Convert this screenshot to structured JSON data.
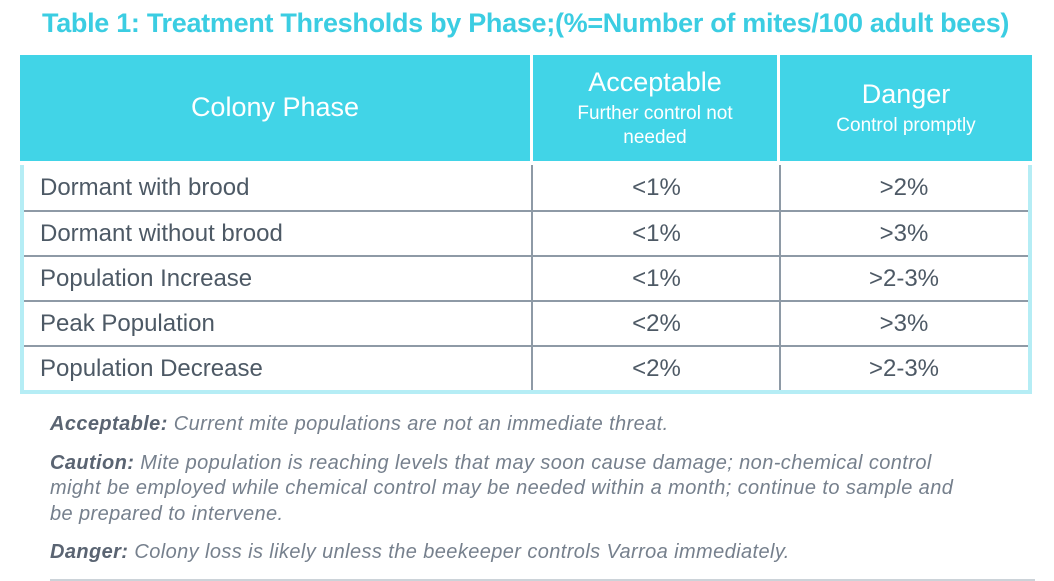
{
  "title": "Table 1: Treatment Thresholds by Phase;(%=Number of mites/100 adult bees)",
  "table": {
    "header": {
      "colony_phase": {
        "label": "Colony Phase"
      },
      "acceptable": {
        "label": "Acceptable",
        "sublabel": "Further control not needed"
      },
      "danger": {
        "label": "Danger",
        "sublabel": "Control promptly"
      }
    },
    "rows": [
      {
        "phase": "Dormant with brood",
        "acceptable": "<1%",
        "danger": ">2%"
      },
      {
        "phase": "Dormant without brood",
        "acceptable": "<1%",
        "danger": ">3%"
      },
      {
        "phase": "Population Increase",
        "acceptable": "<1%",
        "danger": ">2-3%"
      },
      {
        "phase": "Peak Population",
        "acceptable": "<2%",
        "danger": ">3%"
      },
      {
        "phase": "Population Decrease",
        "acceptable": "<2%",
        "danger": ">2-3%"
      }
    ]
  },
  "notes": [
    {
      "term": "Acceptable:",
      "text": "Current mite populations are not an immediate threat."
    },
    {
      "term": "Caution:",
      "text": "Mite population is reaching levels that may soon cause damage; non-chemical control might be employed while chemical control may be needed within a month; continue to sample and be prepared to intervene."
    },
    {
      "term": "Danger:",
      "text": "Colony loss is likely unless the beekeeper controls Varroa immediately."
    }
  ],
  "colors": {
    "title_accent": "#3bcde2",
    "header_background": "#41d4e7",
    "header_text": "#ffffff",
    "outer_border": "#b5edf5",
    "grid_line": "#8e9aa6",
    "body_text": "#4d5965",
    "note_text": "#76808d",
    "note_term_text": "#5a6472"
  }
}
